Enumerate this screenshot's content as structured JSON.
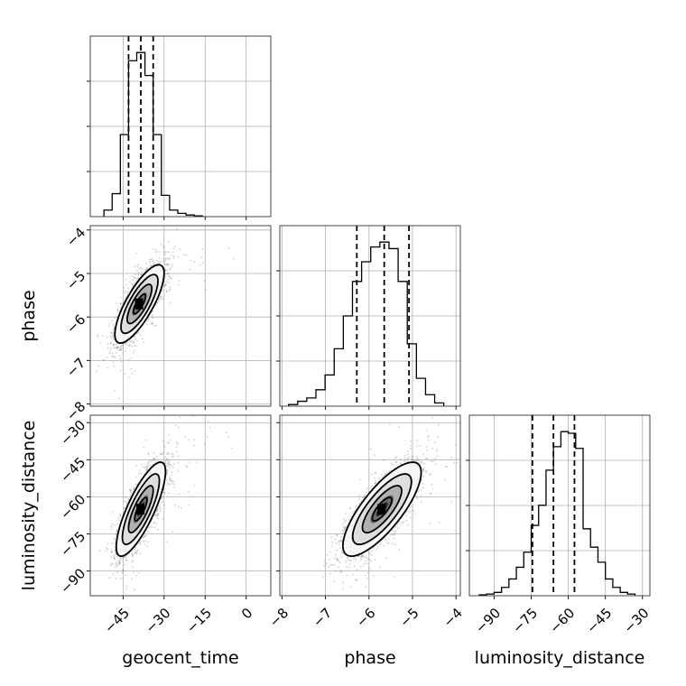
{
  "chart_data": {
    "type": "corner",
    "parameters": [
      "geocent_time",
      "phase",
      "luminosity_distance"
    ],
    "axes": {
      "geocent_time": {
        "label": "geocent_time",
        "range": [
          -57,
          9
        ],
        "ticks": [
          -45,
          -30,
          -15,
          0
        ],
        "tick_labels": [
          "−45",
          "−30",
          "−15",
          "0"
        ]
      },
      "phase": {
        "label": "phase",
        "range": [
          -8.05,
          -3.9
        ],
        "ticks": [
          -8,
          -7,
          -6,
          -5,
          -4
        ],
        "tick_labels": [
          "−8",
          "−7",
          "−6",
          "−5",
          "−4"
        ]
      },
      "luminosity_distance": {
        "label": "luminosity_distance",
        "range": [
          -100,
          -27
        ],
        "ticks": [
          -90,
          -75,
          -60,
          -45,
          -30
        ],
        "tick_labels": [
          "−90",
          "−75",
          "−60",
          "−45",
          "−30"
        ]
      }
    },
    "histograms": {
      "geocent_time": {
        "bin_edges": [
          -52,
          -49,
          -46,
          -43,
          -40,
          -37,
          -34,
          -31,
          -28,
          -25,
          -22,
          -19,
          -16
        ],
        "counts": [
          0.04,
          0.14,
          0.5,
          0.95,
          1.0,
          0.86,
          0.5,
          0.13,
          0.04,
          0.02,
          0.01,
          0.005
        ],
        "quantiles": [
          -43,
          -38.5,
          -34
        ]
      },
      "phase": {
        "bin_edges": [
          -7.85,
          -7.64,
          -7.43,
          -7.22,
          -7.01,
          -6.8,
          -6.59,
          -6.38,
          -6.17,
          -5.96,
          -5.75,
          -5.54,
          -5.33,
          -5.12,
          -4.91,
          -4.7,
          -4.49,
          -4.28
        ],
        "counts": [
          0.01,
          0.03,
          0.05,
          0.1,
          0.19,
          0.35,
          0.55,
          0.76,
          0.88,
          0.97,
          1.0,
          0.96,
          0.76,
          0.38,
          0.17,
          0.07,
          0.02
        ],
        "quantiles": [
          -6.28,
          -5.65,
          -5.08
        ]
      },
      "luminosity_distance": {
        "bin_edges": [
          -96,
          -93,
          -90,
          -87,
          -84,
          -81,
          -78,
          -75,
          -72,
          -69,
          -66,
          -63,
          -60,
          -57,
          -54,
          -51,
          -48,
          -45,
          -42,
          -39,
          -36,
          -33
        ],
        "counts": [
          0.005,
          0.01,
          0.02,
          0.05,
          0.1,
          0.17,
          0.26,
          0.42,
          0.54,
          0.75,
          0.89,
          0.98,
          0.97,
          0.88,
          0.4,
          0.29,
          0.2,
          0.1,
          0.05,
          0.02,
          0.01
        ],
        "quantiles": [
          -74.5,
          -66,
          -57.5
        ]
      }
    },
    "joint": [
      {
        "x": "geocent_time",
        "y": "phase",
        "center": [
          -39,
          -5.7
        ],
        "sigma": [
          4.5,
          0.45
        ],
        "correlation": 0.78,
        "contour_levels_sigma": [
          0.5,
          1.0,
          1.5,
          2.0
        ]
      },
      {
        "x": "geocent_time",
        "y": "luminosity_distance",
        "center": [
          -38.5,
          -65
        ],
        "sigma": [
          4.5,
          9.5
        ],
        "correlation": 0.8,
        "contour_levels_sigma": [
          0.5,
          1.0,
          1.5,
          2.0
        ]
      },
      {
        "x": "phase",
        "y": "luminosity_distance",
        "center": [
          -5.7,
          -65
        ],
        "sigma": [
          0.45,
          9.5
        ],
        "correlation": 0.78,
        "contour_levels_sigma": [
          0.5,
          1.0,
          1.5,
          2.0
        ]
      }
    ]
  }
}
